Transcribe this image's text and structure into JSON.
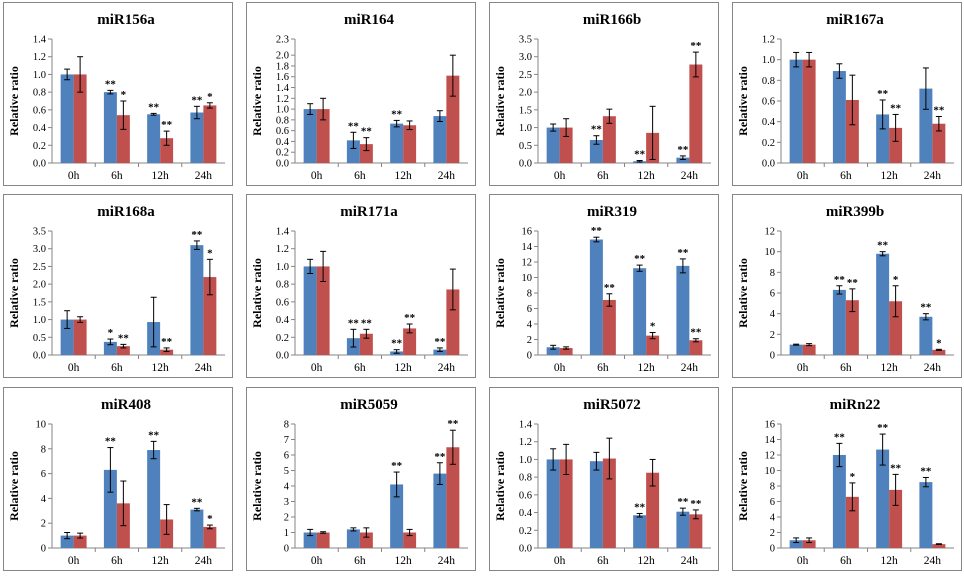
{
  "colors": {
    "series_a": "#4F81BD",
    "series_b": "#C0504D",
    "axis": "#868686",
    "frame": "#868686",
    "error": "#000000"
  },
  "categories": [
    "0h",
    "6h",
    "12h",
    "24h"
  ],
  "ylabel": "Relative ratio",
  "chart_data": [
    {
      "type": "bar",
      "title": "miR156a",
      "ylabel": "Relative ratio",
      "ylim": [
        0,
        1.4
      ],
      "yticks": [
        "0.0",
        "0.2",
        "0.4",
        "0.6",
        "0.8",
        "1.0",
        "1.2",
        "1.4"
      ],
      "categories": [
        "0h",
        "6h",
        "12h",
        "24h"
      ],
      "series": [
        {
          "values": [
            1.0,
            0.8,
            0.55,
            0.57
          ],
          "errors": [
            0.06,
            0.02,
            0.01,
            0.07
          ],
          "sig": [
            "",
            "**",
            "**",
            "**"
          ]
        },
        {
          "values": [
            1.0,
            0.54,
            0.28,
            0.65
          ],
          "errors": [
            0.2,
            0.16,
            0.08,
            0.03
          ],
          "sig": [
            "",
            "*",
            "**",
            "*"
          ]
        }
      ]
    },
    {
      "type": "bar",
      "title": "miR164",
      "ylabel": "Relative ratio",
      "ylim": [
        0,
        2.3
      ],
      "yticks": [
        "0.0",
        "0.2",
        "0.4",
        "0.6",
        "0.8",
        "1.0",
        "1.2",
        "1.4",
        "1.6",
        "1.8",
        "2.0",
        "2.3"
      ],
      "categories": [
        "0h",
        "6h",
        "12h",
        "24h"
      ],
      "series": [
        {
          "values": [
            1.0,
            0.42,
            0.73,
            0.87
          ],
          "errors": [
            0.1,
            0.15,
            0.06,
            0.1
          ],
          "sig": [
            "",
            "**",
            "**",
            ""
          ]
        },
        {
          "values": [
            1.0,
            0.35,
            0.7,
            1.62
          ],
          "errors": [
            0.2,
            0.12,
            0.08,
            0.38
          ],
          "sig": [
            "",
            "**",
            "",
            ""
          ]
        }
      ]
    },
    {
      "type": "bar",
      "title": "miR166b",
      "ylabel": "Relative ratio",
      "ylim": [
        0,
        3.5
      ],
      "yticks": [
        "0.0",
        "0.5",
        "1.0",
        "1.5",
        "2.0",
        "2.5",
        "3.0",
        "3.5"
      ],
      "categories": [
        "0h",
        "6h",
        "12h",
        "24h"
      ],
      "series": [
        {
          "values": [
            1.0,
            0.65,
            0.05,
            0.15
          ],
          "errors": [
            0.1,
            0.12,
            0.02,
            0.05
          ],
          "sig": [
            "",
            "**",
            "**",
            "**"
          ]
        },
        {
          "values": [
            1.0,
            1.32,
            0.85,
            2.78
          ],
          "errors": [
            0.25,
            0.2,
            0.75,
            0.35
          ],
          "sig": [
            "",
            "",
            "",
            "**"
          ]
        }
      ]
    },
    {
      "type": "bar",
      "title": "miR167a",
      "ylabel": "Relative ratio",
      "ylim": [
        0,
        1.2
      ],
      "yticks": [
        "0.0",
        "0.2",
        "0.4",
        "0.6",
        "0.8",
        "1.0",
        "1.2"
      ],
      "categories": [
        "0h",
        "6h",
        "12h",
        "24h"
      ],
      "series": [
        {
          "values": [
            1.0,
            0.89,
            0.47,
            0.72
          ],
          "errors": [
            0.07,
            0.07,
            0.14,
            0.2
          ],
          "sig": [
            "",
            "",
            "**",
            ""
          ]
        },
        {
          "values": [
            1.0,
            0.61,
            0.34,
            0.38
          ],
          "errors": [
            0.07,
            0.24,
            0.13,
            0.07
          ],
          "sig": [
            "",
            "",
            "**",
            "**"
          ]
        }
      ]
    },
    {
      "type": "bar",
      "title": "miR168a",
      "ylabel": "Relative ratio",
      "ylim": [
        0,
        3.5
      ],
      "yticks": [
        "0.0",
        "0.5",
        "1.0",
        "1.5",
        "2.0",
        "2.5",
        "3.0",
        "3.5"
      ],
      "categories": [
        "0h",
        "6h",
        "12h",
        "24h"
      ],
      "series": [
        {
          "values": [
            1.0,
            0.37,
            0.93,
            3.1
          ],
          "errors": [
            0.25,
            0.08,
            0.7,
            0.12
          ],
          "sig": [
            "",
            "*",
            "",
            "**"
          ]
        },
        {
          "values": [
            1.0,
            0.25,
            0.15,
            2.2
          ],
          "errors": [
            0.08,
            0.05,
            0.05,
            0.5
          ],
          "sig": [
            "",
            "**",
            "**",
            "*"
          ]
        }
      ]
    },
    {
      "type": "bar",
      "title": "miR171a",
      "ylabel": "Relative ratio",
      "ylim": [
        0,
        1.4
      ],
      "yticks": [
        "0.0",
        "0.2",
        "0.4",
        "0.6",
        "0.8",
        "1.0",
        "1.2",
        "1.4"
      ],
      "categories": [
        "0h",
        "6h",
        "12h",
        "24h"
      ],
      "series": [
        {
          "values": [
            1.0,
            0.19,
            0.04,
            0.06
          ],
          "errors": [
            0.08,
            0.1,
            0.02,
            0.02
          ],
          "sig": [
            "",
            "**",
            "**",
            "**"
          ]
        },
        {
          "values": [
            1.0,
            0.24,
            0.3,
            0.74
          ],
          "errors": [
            0.17,
            0.05,
            0.05,
            0.23
          ],
          "sig": [
            "",
            "**",
            "**",
            ""
          ]
        }
      ]
    },
    {
      "type": "bar",
      "title": "miR319",
      "ylabel": "Relative ratio",
      "ylim": [
        0,
        16
      ],
      "yticks": [
        "0",
        "2",
        "4",
        "6",
        "8",
        "10",
        "12",
        "14",
        "16"
      ],
      "categories": [
        "0h",
        "6h",
        "12h",
        "24h"
      ],
      "series": [
        {
          "values": [
            1.0,
            14.9,
            11.2,
            11.5
          ],
          "errors": [
            0.25,
            0.3,
            0.4,
            0.9
          ],
          "sig": [
            "",
            "**",
            "**",
            "**"
          ]
        },
        {
          "values": [
            0.9,
            7.1,
            2.5,
            1.9
          ],
          "errors": [
            0.15,
            0.8,
            0.4,
            0.2
          ],
          "sig": [
            "",
            "**",
            "*",
            "**"
          ]
        }
      ]
    },
    {
      "type": "bar",
      "title": "miR399b",
      "ylabel": "Relative ratio",
      "ylim": [
        0,
        12
      ],
      "yticks": [
        "0",
        "2",
        "4",
        "6",
        "8",
        "10",
        "12"
      ],
      "categories": [
        "0h",
        "6h",
        "12h",
        "24h"
      ],
      "series": [
        {
          "values": [
            1.0,
            6.3,
            9.8,
            3.7
          ],
          "errors": [
            0.05,
            0.4,
            0.2,
            0.3
          ],
          "sig": [
            "",
            "**",
            "**",
            "**"
          ]
        },
        {
          "values": [
            1.0,
            5.3,
            5.2,
            0.5
          ],
          "errors": [
            0.1,
            1.1,
            1.5,
            0.05
          ],
          "sig": [
            "",
            "**",
            "*",
            "*"
          ]
        }
      ]
    },
    {
      "type": "bar",
      "title": "miR408",
      "ylabel": "Relative ratio",
      "ylim": [
        0,
        10
      ],
      "yticks": [
        "0",
        "2",
        "4",
        "6",
        "8",
        "10"
      ],
      "categories": [
        "0h",
        "6h",
        "12h",
        "24h"
      ],
      "series": [
        {
          "values": [
            1.0,
            6.3,
            7.9,
            3.1
          ],
          "errors": [
            0.25,
            1.8,
            0.7,
            0.1
          ],
          "sig": [
            "",
            "**",
            "**",
            "**"
          ]
        },
        {
          "values": [
            1.0,
            3.6,
            2.3,
            1.7
          ],
          "errors": [
            0.2,
            1.8,
            1.2,
            0.15
          ],
          "sig": [
            "",
            "",
            "",
            "*"
          ]
        }
      ]
    },
    {
      "type": "bar",
      "title": "miR5059",
      "ylabel": "Relative ratio",
      "ylim": [
        0,
        8
      ],
      "yticks": [
        "0",
        "1",
        "2",
        "3",
        "4",
        "5",
        "6",
        "7",
        "8"
      ],
      "categories": [
        "0h",
        "6h",
        "12h",
        "24h"
      ],
      "series": [
        {
          "values": [
            1.0,
            1.2,
            4.1,
            4.8
          ],
          "errors": [
            0.2,
            0.1,
            0.8,
            0.7
          ],
          "sig": [
            "",
            "",
            "**",
            "**"
          ]
        },
        {
          "values": [
            1.0,
            1.0,
            1.0,
            6.5
          ],
          "errors": [
            0.05,
            0.3,
            0.2,
            1.1
          ],
          "sig": [
            "",
            "",
            "",
            "**"
          ]
        }
      ]
    },
    {
      "type": "bar",
      "title": "miR5072",
      "ylabel": "Relative ratio",
      "ylim": [
        0,
        1.4
      ],
      "yticks": [
        "0.0",
        "0.2",
        "0.4",
        "0.6",
        "0.8",
        "1.0",
        "1.2",
        "1.4"
      ],
      "categories": [
        "0h",
        "6h",
        "12h",
        "24h"
      ],
      "series": [
        {
          "values": [
            1.0,
            0.98,
            0.37,
            0.41
          ],
          "errors": [
            0.12,
            0.1,
            0.02,
            0.04
          ],
          "sig": [
            "",
            "",
            "**",
            "**"
          ]
        },
        {
          "values": [
            1.0,
            1.01,
            0.85,
            0.38
          ],
          "errors": [
            0.17,
            0.23,
            0.15,
            0.05
          ],
          "sig": [
            "",
            "",
            "",
            "**"
          ]
        }
      ]
    },
    {
      "type": "bar",
      "title": "miRn22",
      "ylabel": "Relative ratio",
      "ylim": [
        0,
        16
      ],
      "yticks": [
        "0",
        "2",
        "4",
        "6",
        "8",
        "10",
        "12",
        "14",
        "16"
      ],
      "categories": [
        "0h",
        "6h",
        "12h",
        "24h"
      ],
      "series": [
        {
          "values": [
            1.0,
            12.0,
            12.7,
            8.5
          ],
          "errors": [
            0.3,
            1.5,
            2.0,
            0.6
          ],
          "sig": [
            "",
            "**",
            "**",
            "**"
          ]
        },
        {
          "values": [
            1.0,
            6.6,
            7.5,
            0.5
          ],
          "errors": [
            0.3,
            1.8,
            2.0,
            0.05
          ],
          "sig": [
            "",
            "*",
            "**",
            ""
          ]
        }
      ]
    }
  ]
}
